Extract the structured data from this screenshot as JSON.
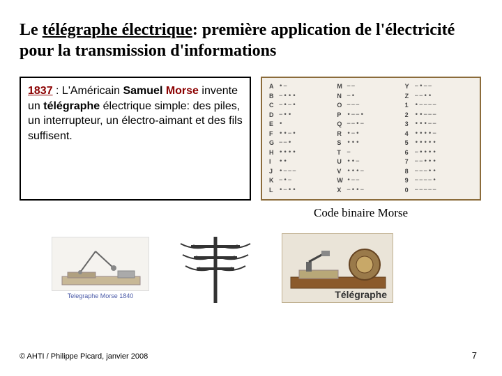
{
  "title": {
    "part1": "Le ",
    "underlined": "télégraphe électrique",
    "part2": ": première application de l'électricité pour la transmission d'informations"
  },
  "textbox": {
    "year": "1837",
    "sep": " : L'Américain ",
    "name": "Samuel ",
    "morse": "Morse",
    "rest1": " invente un ",
    "telegraphe": "télégraphe",
    "rest2": " électrique simple: des piles, un interrupteur, un électro-aimant et des fils suffisent."
  },
  "morse": {
    "col1": [
      {
        "l": "A",
        "c": "•−"
      },
      {
        "l": "B",
        "c": "−•••"
      },
      {
        "l": "C",
        "c": "−•−•"
      },
      {
        "l": "D",
        "c": "−••"
      },
      {
        "l": "E",
        "c": "•"
      },
      {
        "l": "F",
        "c": "••−•"
      },
      {
        "l": "G",
        "c": "−−•"
      },
      {
        "l": "H",
        "c": "••••"
      },
      {
        "l": "I",
        "c": "••"
      },
      {
        "l": "J",
        "c": "•−−−"
      },
      {
        "l": "K",
        "c": "−•−"
      },
      {
        "l": "L",
        "c": "•−••"
      }
    ],
    "col2": [
      {
        "l": "M",
        "c": "−−"
      },
      {
        "l": "N",
        "c": "−•"
      },
      {
        "l": "O",
        "c": "−−−"
      },
      {
        "l": "P",
        "c": "•−−•"
      },
      {
        "l": "Q",
        "c": "−−•−"
      },
      {
        "l": "R",
        "c": "•−•"
      },
      {
        "l": "S",
        "c": "•••"
      },
      {
        "l": "T",
        "c": "−"
      },
      {
        "l": "U",
        "c": "••−"
      },
      {
        "l": "V",
        "c": "•••−"
      },
      {
        "l": "W",
        "c": "•−−"
      },
      {
        "l": "X",
        "c": "−••−"
      }
    ],
    "col3": [
      {
        "l": "Y",
        "c": "−•−−"
      },
      {
        "l": "Z",
        "c": "−−••"
      },
      {
        "l": "1",
        "c": "•−−−−"
      },
      {
        "l": "2",
        "c": "••−−−"
      },
      {
        "l": "3",
        "c": "•••−−"
      },
      {
        "l": "4",
        "c": "••••−"
      },
      {
        "l": "5",
        "c": "•••••"
      },
      {
        "l": "6",
        "c": "−••••"
      },
      {
        "l": "7",
        "c": "−−•••"
      },
      {
        "l": "8",
        "c": "−−−••"
      },
      {
        "l": "9",
        "c": "−−−−•"
      },
      {
        "l": "0",
        "c": "−−−−−"
      }
    ]
  },
  "caption": "Code binaire Morse",
  "imglabel1": "Telegraphe Morse 1840",
  "imglabel2": "Télégraphe",
  "copyright": "© AHTI / Philippe Picard, janvier 2008",
  "pagenum": "7",
  "colors": {
    "accent": "#8b0000",
    "tableBorder": "#8b6b3a",
    "tableBg": "#f3efe8"
  }
}
